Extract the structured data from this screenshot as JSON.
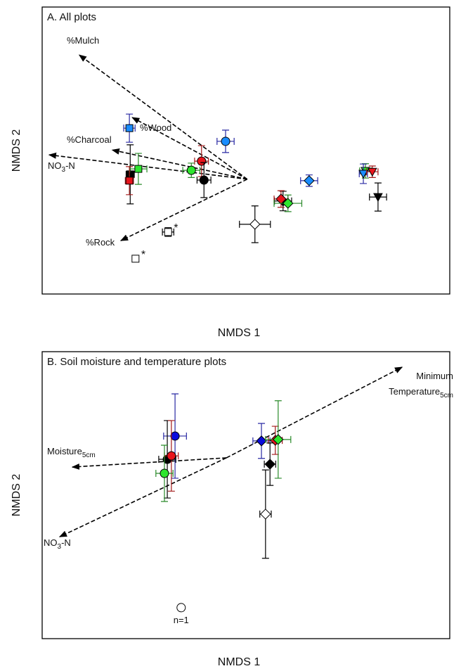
{
  "chart_data": [
    {
      "type": "scatter",
      "title": "A. All plots",
      "xlabel": "NMDS 1",
      "ylabel": "NMDS 2",
      "xlim": [
        0,
        100
      ],
      "ylim": [
        0,
        100
      ],
      "points": [
        {
          "x": 21.4,
          "y": 57.8,
          "xerr": 1.4,
          "yerr": 4.9,
          "marker": "square",
          "color": "#1a8cff",
          "errcolor": "#2929a3"
        },
        {
          "x": 45.0,
          "y": 53.2,
          "xerr": 2.1,
          "yerr": 3.9,
          "marker": "circle",
          "color": "#1a8cff",
          "errcolor": "#2929a3"
        },
        {
          "x": 39.1,
          "y": 46.3,
          "xerr": 1.7,
          "yerr": 5.4,
          "marker": "circle",
          "color": "#e8141c",
          "errcolor": "#a31a1a"
        },
        {
          "x": 36.6,
          "y": 43.1,
          "xerr": 2.1,
          "yerr": 2.5,
          "marker": "circle",
          "color": "#2ee52e",
          "errcolor": "#2a8a2a"
        },
        {
          "x": 39.7,
          "y": 39.7,
          "xerr": 1.7,
          "yerr": 6.1,
          "marker": "circle",
          "color": "#000000",
          "errcolor": "#000000"
        },
        {
          "x": 21.6,
          "y": 41.7,
          "xerr": 1.0,
          "yerr": 10.3,
          "marker": "square",
          "color": "#000000",
          "errcolor": "#000000"
        },
        {
          "x": 23.6,
          "y": 43.6,
          "xerr": 2.1,
          "yerr": 5.4,
          "marker": "square",
          "color": "#2ee52e",
          "errcolor": "#2a8a2a"
        },
        {
          "x": 21.4,
          "y": 39.5,
          "xerr": 1.0,
          "yerr": 4.9,
          "marker": "square",
          "color": "#e8141c",
          "errcolor": "#a31a1a"
        },
        {
          "x": 52.2,
          "y": 24.3,
          "xerr": 3.8,
          "yerr": 6.4,
          "marker": "diamond",
          "color": "#ffffff",
          "errcolor": "#000000"
        },
        {
          "x": 59.1,
          "y": 32.4,
          "xerr": 2.1,
          "yerr": 3.4,
          "marker": "diamond",
          "color": "#000000",
          "errcolor": "#000000"
        },
        {
          "x": 58.6,
          "y": 33.1,
          "xerr": 1.7,
          "yerr": 2.9,
          "marker": "diamond",
          "color": "#e8141c",
          "errcolor": "#a31a1a"
        },
        {
          "x": 60.3,
          "y": 31.6,
          "xerr": 3.4,
          "yerr": 2.9,
          "marker": "diamond",
          "color": "#2ee52e",
          "errcolor": "#2a8a2a"
        },
        {
          "x": 65.5,
          "y": 39.5,
          "xerr": 2.1,
          "yerr": 2.0,
          "marker": "diamond",
          "color": "#1a8cff",
          "errcolor": "#2929a3"
        },
        {
          "x": 79.3,
          "y": 42.9,
          "xerr": 1.4,
          "yerr": 2.5,
          "marker": "triangle-down",
          "color": "#2ee52e",
          "errcolor": "#2a8a2a"
        },
        {
          "x": 78.8,
          "y": 41.9,
          "xerr": 1.0,
          "yerr": 3.4,
          "marker": "triangle-down",
          "color": "#1a8cff",
          "errcolor": "#2929a3"
        },
        {
          "x": 81.0,
          "y": 42.6,
          "xerr": 1.4,
          "yerr": 2.0,
          "marker": "triangle-down",
          "color": "#e8141c",
          "errcolor": "#a31a1a"
        },
        {
          "x": 82.4,
          "y": 33.8,
          "xerr": 2.1,
          "yerr": 4.9,
          "marker": "triangle-down",
          "color": "#000000",
          "errcolor": "#000000"
        },
        {
          "x": 30.9,
          "y": 21.6,
          "xerr": 1.4,
          "yerr": 1.5,
          "marker": "square",
          "color": "#ffffff",
          "errcolor": "#000000",
          "annotation": "*"
        },
        {
          "x": 22.9,
          "y": 12.3,
          "xerr": 0.7,
          "yerr": 1.0,
          "marker": "square",
          "color": "#ffffff",
          "errcolor": "#000000",
          "annotation": "*"
        }
      ],
      "vectors": [
        {
          "x0": 50.3,
          "y0": 40.0,
          "x": 9.1,
          "y": 83.3,
          "label": [
            [
              {
                "text": "%Mulch"
              }
            ]
          ]
        },
        {
          "x0": 50.3,
          "y0": 40.0,
          "x": 22.1,
          "y": 61.5,
          "label": [
            [
              {
                "text": "%Wood"
              }
            ]
          ]
        },
        {
          "x0": 50.3,
          "y0": 40.0,
          "x": 17.2,
          "y": 50.2,
          "label": [
            [
              {
                "text": "%Charcoal"
              }
            ]
          ]
        },
        {
          "x0": 50.3,
          "y0": 40.0,
          "x": 1.7,
          "y": 48.5,
          "label": [
            [
              {
                "text": "NO"
              },
              {
                "sub": "3"
              },
              {
                "text": "-N"
              }
            ]
          ]
        },
        {
          "x0": 50.3,
          "y0": 40.0,
          "x": 19.3,
          "y": 18.6,
          "label": [
            [
              {
                "text": "%Rock"
              }
            ]
          ]
        }
      ]
    },
    {
      "type": "scatter",
      "title": "B. Soil moisture and temperature plots",
      "xlabel": "NMDS 1",
      "ylabel": "NMDS 2",
      "xlim": [
        0,
        100
      ],
      "ylim": [
        0,
        100
      ],
      "points": [
        {
          "x": 32.6,
          "y": 70.6,
          "xerr": 2.8,
          "yerr": 14.7,
          "marker": "circle",
          "color": "#0a0adc",
          "errcolor": "#2929a3"
        },
        {
          "x": 30.7,
          "y": 62.5,
          "xerr": 2.1,
          "yerr": 13.5,
          "marker": "circle",
          "color": "#000000",
          "errcolor": "#000000"
        },
        {
          "x": 31.7,
          "y": 63.7,
          "xerr": 1.7,
          "yerr": 12.3,
          "marker": "circle",
          "color": "#e8141c",
          "errcolor": "#a31a1a"
        },
        {
          "x": 30.0,
          "y": 57.6,
          "xerr": 2.1,
          "yerr": 9.8,
          "marker": "circle",
          "color": "#2ee52e",
          "errcolor": "#2a8a2a"
        },
        {
          "x": 53.8,
          "y": 68.9,
          "xerr": 2.1,
          "yerr": 6.1,
          "marker": "diamond",
          "color": "#0a0adc",
          "errcolor": "#2929a3"
        },
        {
          "x": 57.2,
          "y": 69.1,
          "xerr": 1.7,
          "yerr": 4.9,
          "marker": "diamond",
          "color": "#e8141c",
          "errcolor": "#a31a1a"
        },
        {
          "x": 57.9,
          "y": 69.4,
          "xerr": 3.1,
          "yerr": 13.5,
          "marker": "diamond",
          "color": "#2ee52e",
          "errcolor": "#2a8a2a"
        },
        {
          "x": 55.9,
          "y": 60.8,
          "xerr": 1.4,
          "yerr": 7.4,
          "marker": "diamond",
          "color": "#000000",
          "errcolor": "#000000"
        },
        {
          "x": 54.8,
          "y": 43.4,
          "xerr": 1.4,
          "yerr": 15.4,
          "marker": "diamond",
          "color": "#ffffff",
          "errcolor": "#000000"
        },
        {
          "x": 34.1,
          "y": 10.8,
          "marker": "circle",
          "color": "#ffffff",
          "errcolor": "#000000",
          "annotation": "n=1"
        }
      ],
      "vectors": [
        {
          "x0": 45.2,
          "y0": 63.0,
          "x": 88.3,
          "y": 94.6,
          "label": [
            [
              {
                "text": "Minimum"
              }
            ],
            [
              {
                "text": "Temperature"
              },
              {
                "sub": "5cm"
              }
            ]
          ]
        },
        {
          "x0": 45.2,
          "y0": 63.0,
          "x": 7.4,
          "y": 59.8,
          "label": [
            [
              {
                "text": "Moisture"
              },
              {
                "sub": "5cm"
              }
            ]
          ]
        },
        {
          "x0": 45.2,
          "y0": 63.0,
          "x": 4.3,
          "y": 35.5,
          "label": [
            [
              {
                "text": "NO"
              },
              {
                "sub": "3"
              },
              {
                "text": "-N"
              }
            ]
          ]
        }
      ]
    }
  ]
}
